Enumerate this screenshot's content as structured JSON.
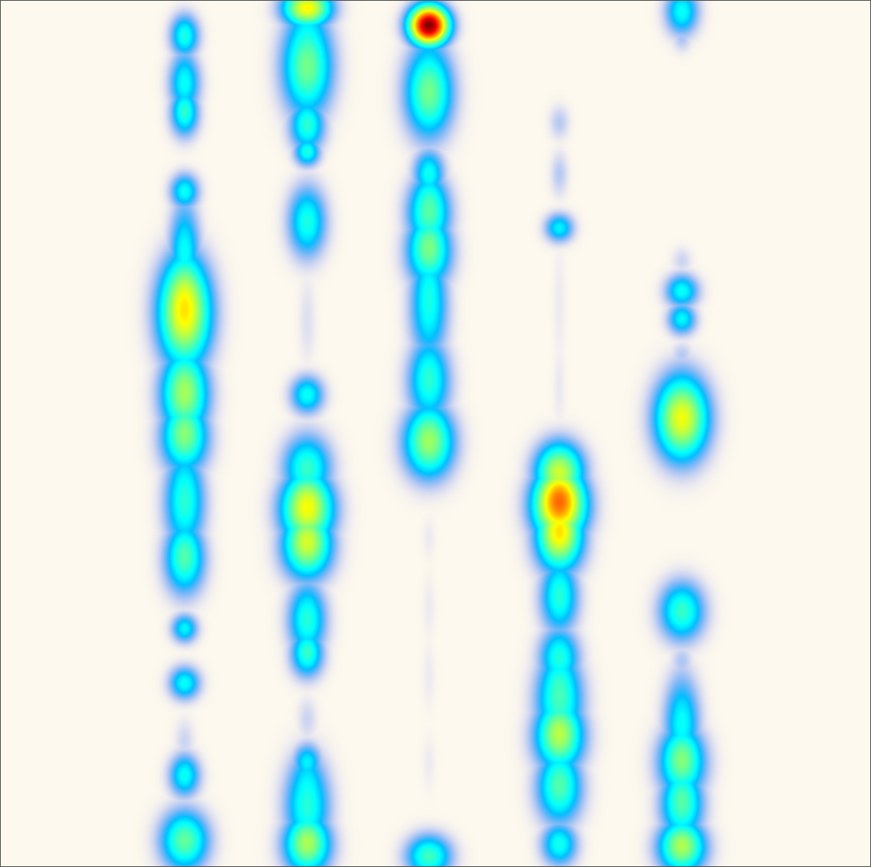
{
  "chart_data": {
    "type": "heatmap",
    "title": "",
    "xlabel": "",
    "ylabel": "",
    "axes_visible": false,
    "grid": false,
    "legend": "none",
    "colormap": "jet",
    "background_color": "#fdf9ee",
    "frame_color": "#555555",
    "x_range": [
      0,
      1
    ],
    "y_range": [
      0,
      1
    ],
    "value_range": [
      0,
      1
    ],
    "columns": [
      {
        "x": 0.211,
        "blobs": [
          {
            "y": 0.04,
            "sx": 0.012,
            "sy": 0.018,
            "v": 0.32
          },
          {
            "y": 0.095,
            "sx": 0.013,
            "sy": 0.025,
            "v": 0.3
          },
          {
            "y": 0.13,
            "sx": 0.012,
            "sy": 0.02,
            "v": 0.3
          },
          {
            "y": 0.22,
            "sx": 0.012,
            "sy": 0.015,
            "v": 0.3
          },
          {
            "y": 0.29,
            "sx": 0.013,
            "sy": 0.04,
            "v": 0.3
          },
          {
            "y": 0.36,
            "sx": 0.022,
            "sy": 0.045,
            "v": 0.58
          },
          {
            "y": 0.455,
            "sx": 0.02,
            "sy": 0.035,
            "v": 0.45
          },
          {
            "y": 0.505,
            "sx": 0.02,
            "sy": 0.03,
            "v": 0.38
          },
          {
            "y": 0.58,
            "sx": 0.017,
            "sy": 0.04,
            "v": 0.33
          },
          {
            "y": 0.645,
            "sx": 0.017,
            "sy": 0.03,
            "v": 0.35
          },
          {
            "y": 0.725,
            "sx": 0.011,
            "sy": 0.012,
            "v": 0.28
          },
          {
            "y": 0.788,
            "sx": 0.013,
            "sy": 0.014,
            "v": 0.3
          },
          {
            "y": 0.855,
            "sx": 0.009,
            "sy": 0.02,
            "v": 0.08
          },
          {
            "y": 0.895,
            "sx": 0.013,
            "sy": 0.018,
            "v": 0.3
          },
          {
            "y": 0.97,
            "sx": 0.02,
            "sy": 0.025,
            "v": 0.4
          }
        ]
      },
      {
        "x": 0.352,
        "blobs": [
          {
            "y": 0.008,
            "sx": 0.02,
            "sy": 0.016,
            "v": 0.58
          },
          {
            "y": 0.075,
            "sx": 0.021,
            "sy": 0.042,
            "v": 0.42
          },
          {
            "y": 0.145,
            "sx": 0.015,
            "sy": 0.022,
            "v": 0.3
          },
          {
            "y": 0.175,
            "sx": 0.011,
            "sy": 0.012,
            "v": 0.28
          },
          {
            "y": 0.255,
            "sx": 0.016,
            "sy": 0.03,
            "v": 0.32
          },
          {
            "y": 0.37,
            "sx": 0.008,
            "sy": 0.04,
            "v": 0.06
          },
          {
            "y": 0.455,
            "sx": 0.014,
            "sy": 0.016,
            "v": 0.3
          },
          {
            "y": 0.54,
            "sx": 0.02,
            "sy": 0.028,
            "v": 0.35
          },
          {
            "y": 0.588,
            "sx": 0.022,
            "sy": 0.03,
            "v": 0.54
          },
          {
            "y": 0.63,
            "sx": 0.021,
            "sy": 0.028,
            "v": 0.45
          },
          {
            "y": 0.715,
            "sx": 0.016,
            "sy": 0.03,
            "v": 0.33
          },
          {
            "y": 0.755,
            "sx": 0.014,
            "sy": 0.02,
            "v": 0.3
          },
          {
            "y": 0.83,
            "sx": 0.009,
            "sy": 0.02,
            "v": 0.08
          },
          {
            "y": 0.88,
            "sx": 0.012,
            "sy": 0.016,
            "v": 0.28
          },
          {
            "y": 0.93,
            "sx": 0.019,
            "sy": 0.04,
            "v": 0.33
          },
          {
            "y": 0.975,
            "sx": 0.02,
            "sy": 0.025,
            "v": 0.42
          }
        ]
      },
      {
        "x": 0.492,
        "blobs": [
          {
            "y": 0.028,
            "sx": 0.016,
            "sy": 0.016,
            "v": 1.0
          },
          {
            "y": 0.105,
            "sx": 0.02,
            "sy": 0.038,
            "v": 0.42
          },
          {
            "y": 0.2,
            "sx": 0.013,
            "sy": 0.02,
            "v": 0.3
          },
          {
            "y": 0.245,
            "sx": 0.018,
            "sy": 0.03,
            "v": 0.38
          },
          {
            "y": 0.29,
            "sx": 0.019,
            "sy": 0.03,
            "v": 0.38
          },
          {
            "y": 0.355,
            "sx": 0.016,
            "sy": 0.045,
            "v": 0.3
          },
          {
            "y": 0.44,
            "sx": 0.018,
            "sy": 0.035,
            "v": 0.32
          },
          {
            "y": 0.51,
            "sx": 0.021,
            "sy": 0.03,
            "v": 0.45
          },
          {
            "y": 0.62,
            "sx": 0.006,
            "sy": 0.02,
            "v": 0.04
          },
          {
            "y": 0.7,
            "sx": 0.006,
            "sy": 0.03,
            "v": 0.04
          },
          {
            "y": 0.78,
            "sx": 0.006,
            "sy": 0.03,
            "v": 0.04
          },
          {
            "y": 0.88,
            "sx": 0.006,
            "sy": 0.025,
            "v": 0.04
          },
          {
            "y": 0.988,
            "sx": 0.019,
            "sy": 0.018,
            "v": 0.36
          }
        ]
      },
      {
        "x": 0.642,
        "blobs": [
          {
            "y": 0.14,
            "sx": 0.009,
            "sy": 0.015,
            "v": 0.1
          },
          {
            "y": 0.2,
            "sx": 0.008,
            "sy": 0.02,
            "v": 0.1
          },
          {
            "y": 0.262,
            "sx": 0.012,
            "sy": 0.012,
            "v": 0.28
          },
          {
            "y": 0.35,
            "sx": 0.006,
            "sy": 0.06,
            "v": 0.04
          },
          {
            "y": 0.45,
            "sx": 0.006,
            "sy": 0.04,
            "v": 0.04
          },
          {
            "y": 0.545,
            "sx": 0.02,
            "sy": 0.025,
            "v": 0.52
          },
          {
            "y": 0.583,
            "sx": 0.022,
            "sy": 0.03,
            "v": 0.68
          },
          {
            "y": 0.62,
            "sx": 0.02,
            "sy": 0.03,
            "v": 0.48
          },
          {
            "y": 0.69,
            "sx": 0.016,
            "sy": 0.03,
            "v": 0.32
          },
          {
            "y": 0.76,
            "sx": 0.017,
            "sy": 0.025,
            "v": 0.32
          },
          {
            "y": 0.81,
            "sx": 0.02,
            "sy": 0.04,
            "v": 0.35
          },
          {
            "y": 0.85,
            "sx": 0.021,
            "sy": 0.03,
            "v": 0.42
          },
          {
            "y": 0.91,
            "sx": 0.019,
            "sy": 0.03,
            "v": 0.36
          },
          {
            "y": 0.975,
            "sx": 0.015,
            "sy": 0.018,
            "v": 0.3
          }
        ]
      },
      {
        "x": 0.783,
        "blobs": [
          {
            "y": 0.012,
            "sx": 0.014,
            "sy": 0.02,
            "v": 0.3
          },
          {
            "y": 0.045,
            "sx": 0.009,
            "sy": 0.012,
            "v": 0.08
          },
          {
            "y": 0.3,
            "sx": 0.009,
            "sy": 0.012,
            "v": 0.08
          },
          {
            "y": 0.335,
            "sx": 0.014,
            "sy": 0.014,
            "v": 0.3
          },
          {
            "y": 0.368,
            "sx": 0.012,
            "sy": 0.013,
            "v": 0.28
          },
          {
            "y": 0.41,
            "sx": 0.01,
            "sy": 0.012,
            "v": 0.1
          },
          {
            "y": 0.482,
            "sx": 0.022,
            "sy": 0.035,
            "v": 0.56
          },
          {
            "y": 0.705,
            "sx": 0.019,
            "sy": 0.025,
            "v": 0.35
          },
          {
            "y": 0.765,
            "sx": 0.01,
            "sy": 0.015,
            "v": 0.1
          },
          {
            "y": 0.835,
            "sx": 0.015,
            "sy": 0.04,
            "v": 0.3
          },
          {
            "y": 0.88,
            "sx": 0.02,
            "sy": 0.03,
            "v": 0.38
          },
          {
            "y": 0.93,
            "sx": 0.018,
            "sy": 0.03,
            "v": 0.35
          },
          {
            "y": 0.978,
            "sx": 0.02,
            "sy": 0.022,
            "v": 0.45
          }
        ]
      }
    ]
  }
}
